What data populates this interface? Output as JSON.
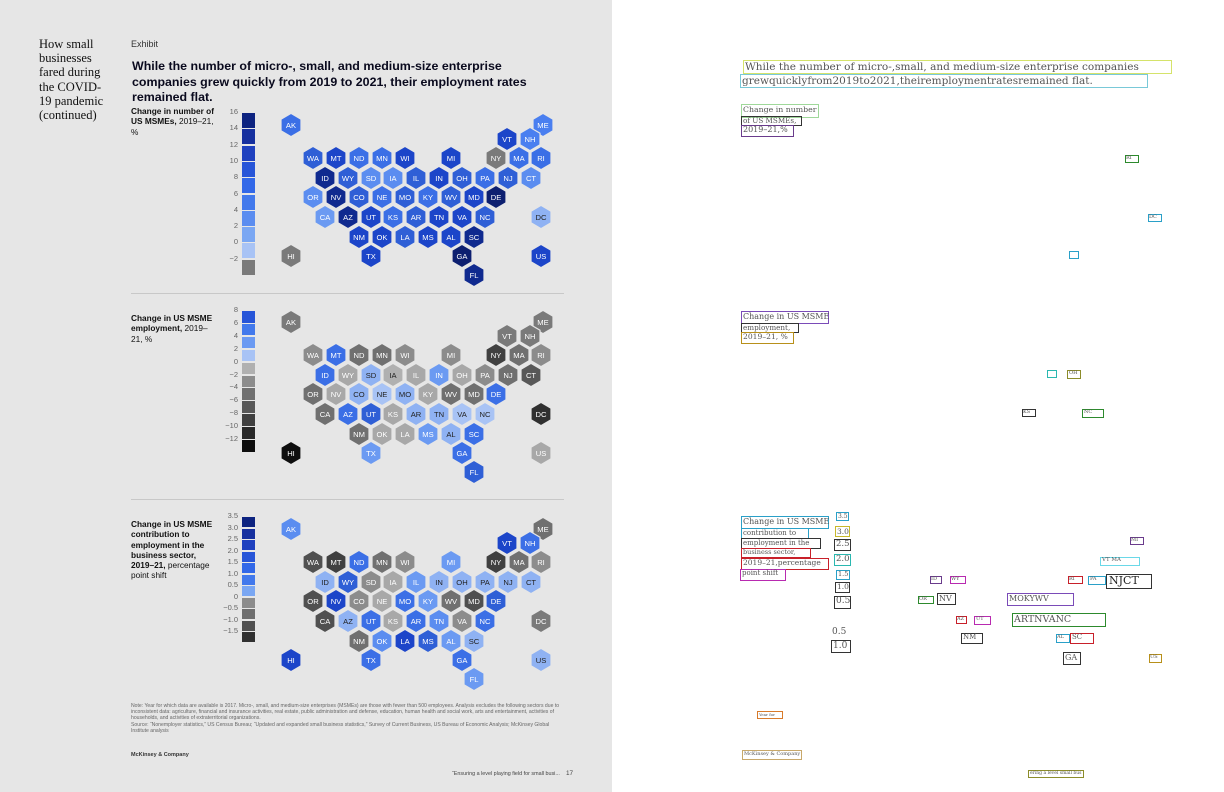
{
  "sidebar": {
    "title": "How small businesses fared during the COVID-19 pandemic (continued)"
  },
  "exhibit": {
    "label": "Exhibit",
    "headline": "While the number of micro-, small, and medium-size enterprise companies grew quickly from 2019 to 2021, their employment rates remained flat."
  },
  "panels": [
    {
      "title_bold": "Change in number of US MSMEs,",
      "title_rest": " 2019–21, %",
      "scale": [
        "16",
        "14",
        "12",
        "10",
        "8",
        "6",
        "4",
        "2",
        "0",
        "−2"
      ],
      "swatch_colors": [
        "#0d2380",
        "#16309f",
        "#1f41bf",
        "#2755d8",
        "#3268e8",
        "#4279ec",
        "#5b8df0",
        "#7aa7f3",
        "#a8c3f5",
        "#7a7a7a"
      ],
      "hex": {
        "AK": "#3b6fe6",
        "ME": "#4a7ff0",
        "VT": "#1c45c9",
        "NH": "#4a7ff0",
        "WA": "#2f5fd6",
        "MT": "#1c45c9",
        "ND": "#3b6fe6",
        "MN": "#3b6fe6",
        "WI": "#1c45c9",
        "MI": "#1c45c9",
        "NY": "#7a7a7a",
        "MA": "#3b6fe6",
        "RI": "#3b6fe6",
        "ID": "#102a8f",
        "WY": "#2f5fd6",
        "SD": "#5b8df0",
        "IA": "#5b8df0",
        "IL": "#2f5fd6",
        "IN": "#1c45c9",
        "OH": "#2f5fd6",
        "PA": "#3b6fe6",
        "NJ": "#2f5fd6",
        "CT": "#5b8df0",
        "OR": "#5b8df0",
        "NV": "#102a8f",
        "CO": "#2f5fd6",
        "NE": "#3b6fe6",
        "MO": "#2f5fd6",
        "KY": "#3b6fe6",
        "WV": "#2f5fd6",
        "MD": "#1c45c9",
        "DE": "#0d1f70",
        "CA": "#6b9af2",
        "AZ": "#102a8f",
        "UT": "#1c45c9",
        "KS": "#3b6fe6",
        "AR": "#2f5fd6",
        "TN": "#1c45c9",
        "VA": "#1c45c9",
        "NC": "#2f5fd6",
        "DC": "#8fb2f3",
        "NM": "#1c45c9",
        "OK": "#1c45c9",
        "LA": "#2f5fd6",
        "MS": "#1c45c9",
        "AL": "#1c45c9",
        "SC": "#102a8f",
        "HI": "#7a7a7a",
        "TX": "#1c45c9",
        "GA": "#0d1f70",
        "US": "#1c45c9",
        "FL": "#102a8f"
      }
    },
    {
      "title_bold": "Change in US MSME employment,",
      "title_rest": " 2019–21, %",
      "scale": [
        "8",
        "6",
        "4",
        "2",
        "0",
        "−2",
        "−4",
        "−6",
        "−8",
        "−10",
        "−12"
      ],
      "swatch_colors": [
        "#2755d8",
        "#4279ec",
        "#6b9af2",
        "#a8c3f5",
        "#b0b0b0",
        "#8c8c8c",
        "#707070",
        "#585858",
        "#404040",
        "#282828",
        "#0e0e0e"
      ],
      "hex": {
        "AK": "#7a7a7a",
        "ME": "#7a7a7a",
        "VT": "#7a7a7a",
        "NH": "#7a7a7a",
        "WA": "#8c8c8c",
        "MT": "#3b6fe6",
        "ND": "#707070",
        "MN": "#707070",
        "WI": "#8c8c8c",
        "MI": "#8c8c8c",
        "NY": "#404040",
        "MA": "#707070",
        "RI": "#8c8c8c",
        "ID": "#3b6fe6",
        "WY": "#a8a8a8",
        "SD": "#8fb2f3",
        "IA": "#b0b0b0",
        "IL": "#a8a8a8",
        "IN": "#6b9af2",
        "OH": "#a8a8a8",
        "PA": "#8c8c8c",
        "NJ": "#707070",
        "CT": "#585858",
        "OR": "#707070",
        "NV": "#a8a8a8",
        "CO": "#8fb2f3",
        "NE": "#a8c3f5",
        "MO": "#8fb2f3",
        "KY": "#a8a8a8",
        "WV": "#707070",
        "MD": "#707070",
        "DE": "#3b6fe6",
        "CA": "#707070",
        "AZ": "#3b6fe6",
        "UT": "#2f5fd6",
        "KS": "#a8a8a8",
        "AR": "#8fb2f3",
        "TN": "#8fb2f3",
        "VA": "#a8c3f5",
        "NC": "#a8c3f5",
        "DC": "#303030",
        "NM": "#707070",
        "OK": "#a8a8a8",
        "LA": "#a8a8a8",
        "MS": "#6b9af2",
        "AL": "#8fb2f3",
        "SC": "#3b6fe6",
        "HI": "#0e0e0e",
        "TX": "#6b9af2",
        "GA": "#3b6fe6",
        "US": "#a8a8a8",
        "FL": "#2f5fd6"
      }
    },
    {
      "title_bold": "Change in US MSME contribution to employment in the business sector, 2019–21,",
      "title_rest": " percentage point shift",
      "scale": [
        "3.5",
        "3.0",
        "2.5",
        "2.0",
        "1.5",
        "1.0",
        "0.5",
        "0",
        "−0.5",
        "−1.0",
        "−1.5"
      ],
      "swatch_colors": [
        "#0d2380",
        "#16309f",
        "#1f41bf",
        "#2755d8",
        "#3268e8",
        "#4279ec",
        "#7aa7f3",
        "#8c8c8c",
        "#6e6e6e",
        "#505050",
        "#303030"
      ],
      "hex": {
        "AK": "#5b8df0",
        "ME": "#707070",
        "VT": "#1c45c9",
        "NH": "#3b6fe6",
        "WA": "#505050",
        "MT": "#404040",
        "ND": "#3b6fe6",
        "MN": "#707070",
        "WI": "#8c8c8c",
        "MI": "#6b9af2",
        "NY": "#404040",
        "MA": "#707070",
        "RI": "#8c8c8c",
        "ID": "#8fb2f3",
        "WY": "#2f5fd6",
        "SD": "#8c8c8c",
        "IA": "#a8a8a8",
        "IL": "#6b9af2",
        "IN": "#8fb2f3",
        "OH": "#8fb2f3",
        "PA": "#8fb2f3",
        "NJ": "#8fb2f3",
        "CT": "#8fb2f3",
        "OR": "#505050",
        "NV": "#1c45c9",
        "CO": "#8c8c8c",
        "NE": "#a8a8a8",
        "MO": "#3b6fe6",
        "KY": "#6b9af2",
        "WV": "#707070",
        "MD": "#505050",
        "DE": "#2f5fd6",
        "CA": "#505050",
        "AZ": "#8fb2f3",
        "UT": "#3b6fe6",
        "KS": "#a8a8a8",
        "AR": "#3b6fe6",
        "TN": "#5b8df0",
        "VA": "#8c8c8c",
        "NC": "#3b6fe6",
        "DC": "#7a7a7a",
        "NM": "#707070",
        "OK": "#5b8df0",
        "LA": "#1c45c9",
        "MS": "#2f5fd6",
        "AL": "#6b9af2",
        "SC": "#8fb2f3",
        "HI": "#1c45c9",
        "TX": "#3b6fe6",
        "GA": "#3b6fe6",
        "US": "#8fb2f3",
        "FL": "#6b9af2"
      }
    }
  ],
  "note": "Note: Year for which data are available is 2017. Micro-, small, and medium-size enterprises (MSMEs) are those with fewer than 500 employees. Analysis excludes the following sectors due to inconsistent data: agriculture, financial and insurance activities, real estate, public administration and defense, education, human health and social work, arts and entertainment, activities of households, and activities of extraterritorial organizations.",
  "source": "Source: “Nonemployer statistics,” US Census Bureau; “Updated and expanded small business statistics,” Survey of Current Business, US Bureau of Economic Analysis; McKinsey Global Institute analysis",
  "credit": "McKinsey & Company",
  "footer": "“Ensuring a level playing field for small busi...",
  "page_number": "17",
  "ocr": {
    "headline_1": "While the number of micro-,small, and medium-size enterprise companies",
    "headline_2": "grewquicklyfrom2019to2021,theiremploymentratesremained flat.",
    "p1_1": "Change in number",
    "p1_2": "of US MSMEs,",
    "p1_3": "2019–21,%",
    "p2_1": "Change in US MSME",
    "p2_2": "employment,",
    "p2_3": "2019–21, %",
    "p3_1": "Change in US MSME",
    "p3_2": "contribution to",
    "p3_3": "employment in the",
    "p3_4": "business sector,",
    "p3_5": "2019–21,percentage",
    "p3_6": "point shift",
    "s_35": "3.5",
    "s_30": "3.0",
    "s_25": "2.5",
    "s_20": "2.0",
    "s_15": "1.5",
    "s_10": "1.0",
    "s_05": "0.5",
    "s_n05": "0.5",
    "s_n10": "1.0",
    "row_mi": "MI",
    "row_vtma": "VT  MA",
    "row_njct": "NJCT",
    "row_id": "ID",
    "row_wy": "WY",
    "row_ri": "RI",
    "row_pa": "PA",
    "row_or": "OR",
    "row_nv": "NV",
    "row_mokywv": "MOKYWV",
    "row_az": "AZ",
    "row_ut": "UT",
    "row_artnvanc": "ARTNVANC",
    "row_nm": "NM",
    "row_al": "AL",
    "row_sc": "SC",
    "row_ga": "GA",
    "row_us": "US",
    "p1_ri": "RI",
    "p1_dc": "DC",
    "p1_ga": "GA",
    "p2_oh": "OH",
    "p2_nc": "NC",
    "p2_ks": "KS",
    "r_note": "Year for",
    "r_credit": "McKinsey & Company",
    "r_footer": "ering a level small bus"
  }
}
